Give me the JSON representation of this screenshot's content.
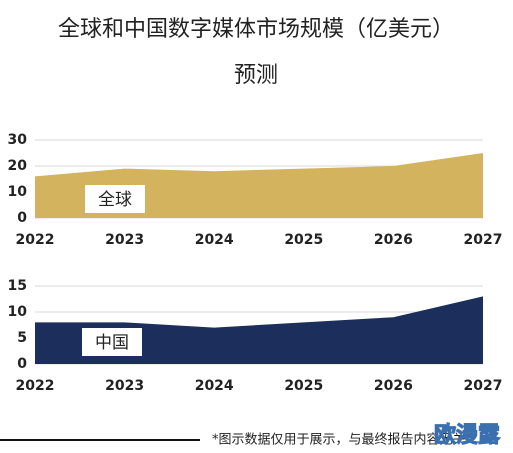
{
  "title": [
    "全球和中国数字媒体市场规模（亿美元）",
    "预测"
  ],
  "footnote": "*图示数据仅用于展示，与最终报告内容无关",
  "watermark": "欧漫露",
  "chart_data": [
    {
      "type": "area",
      "x": [
        2022,
        2023,
        2024,
        2025,
        2026,
        2027
      ],
      "xlim": [
        2022,
        2027
      ],
      "xticks": [
        2022,
        2023,
        2024,
        2025,
        2026,
        2027
      ],
      "ylim": [
        0,
        30
      ],
      "yticks": [
        0,
        10,
        20,
        30
      ],
      "grid": true,
      "series": [
        {
          "name": "全球",
          "color": "#d4b35f",
          "values": [
            16,
            19,
            18,
            19,
            20,
            25
          ]
        }
      ]
    },
    {
      "type": "area",
      "x": [
        2022,
        2023,
        2024,
        2025,
        2026,
        2027
      ],
      "xlim": [
        2022,
        2027
      ],
      "xticks": [
        2022,
        2023,
        2024,
        2025,
        2026,
        2027
      ],
      "ylim": [
        0,
        15
      ],
      "yticks": [
        0,
        5,
        10,
        15
      ],
      "grid": true,
      "series": [
        {
          "name": "中国",
          "color": "#1c2f5c",
          "values": [
            8,
            8,
            7,
            8,
            9,
            13
          ]
        }
      ]
    }
  ]
}
